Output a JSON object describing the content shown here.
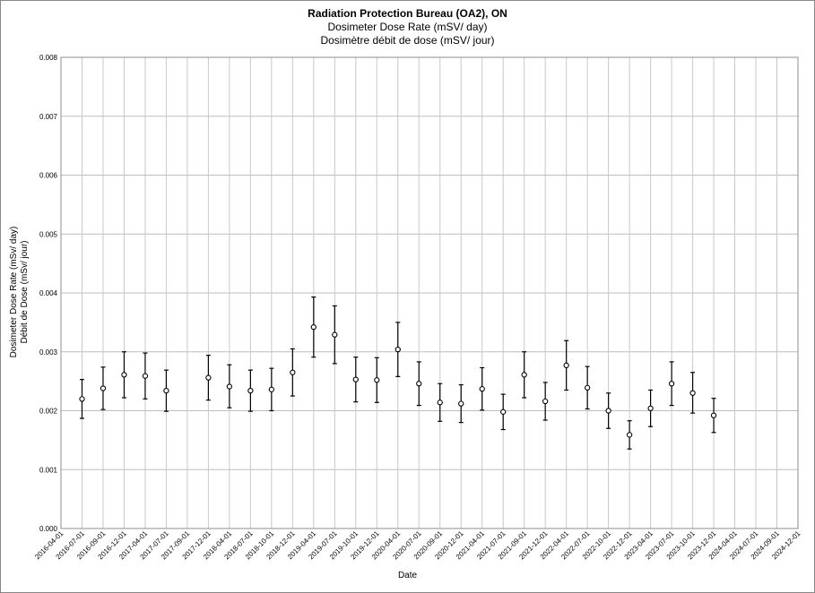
{
  "chart_data": {
    "type": "scatter",
    "title": "Radiation Protection Bureau (OA2), ON",
    "subtitle_en": "Dosimeter Dose Rate (mSV/ day)",
    "subtitle_fr": "Dosimètre débit de dose (mSV/ jour)",
    "ylabel_en": "Dosimeter Dose Rate (mSv/ day)",
    "ylabel_fr": "Débit de Dose (mSv/ jour)",
    "xlabel": "Date",
    "ylim": [
      0,
      0.008
    ],
    "y_ticks": [
      "0.000",
      "0.001",
      "0.002",
      "0.003",
      "0.004",
      "0.005",
      "0.006",
      "0.007",
      "0.008"
    ],
    "x_ticks": [
      "2016-04-01",
      "2016-07-01",
      "2016-09-01",
      "2016-12-01",
      "2017-04-01",
      "2017-07-01",
      "2017-09-01",
      "2017-12-01",
      "2018-04-01",
      "2018-07-01",
      "2018-10-01",
      "2018-12-01",
      "2019-04-01",
      "2019-07-01",
      "2019-10-01",
      "2019-12-01",
      "2020-04-01",
      "2020-07-01",
      "2020-09-01",
      "2020-12-01",
      "2021-04-01",
      "2021-07-01",
      "2021-09-01",
      "2021-12-01",
      "2022-04-01",
      "2022-07-01",
      "2022-10-01",
      "2022-12-01",
      "2023-04-01",
      "2023-07-01",
      "2023-10-01",
      "2023-12-01",
      "2024-04-01",
      "2024-07-01",
      "2024-09-01",
      "2024-12-01"
    ],
    "grid": true,
    "marker": "open-circle",
    "points": [
      {
        "x": "2016-07-01",
        "y": 0.0022,
        "low": 0.00187,
        "high": 0.00253
      },
      {
        "x": "2016-09-01",
        "y": 0.00238,
        "low": 0.00202,
        "high": 0.00274
      },
      {
        "x": "2016-12-01",
        "y": 0.00261,
        "low": 0.00222,
        "high": 0.003
      },
      {
        "x": "2017-04-01",
        "y": 0.00259,
        "low": 0.0022,
        "high": 0.00298
      },
      {
        "x": "2017-07-01",
        "y": 0.00234,
        "low": 0.00199,
        "high": 0.00269
      },
      {
        "x": "2017-12-01",
        "y": 0.00256,
        "low": 0.00218,
        "high": 0.00294
      },
      {
        "x": "2018-04-01",
        "y": 0.00241,
        "low": 0.00205,
        "high": 0.00278
      },
      {
        "x": "2018-07-01",
        "y": 0.00234,
        "low": 0.00199,
        "high": 0.00269
      },
      {
        "x": "2018-10-01",
        "y": 0.00236,
        "low": 0.002,
        "high": 0.00272
      },
      {
        "x": "2018-12-01",
        "y": 0.00265,
        "low": 0.00225,
        "high": 0.00305
      },
      {
        "x": "2019-04-01",
        "y": 0.00342,
        "low": 0.00291,
        "high": 0.00393
      },
      {
        "x": "2019-07-01",
        "y": 0.00329,
        "low": 0.0028,
        "high": 0.00378
      },
      {
        "x": "2019-10-01",
        "y": 0.00253,
        "low": 0.00215,
        "high": 0.00291
      },
      {
        "x": "2019-12-01",
        "y": 0.00252,
        "low": 0.00214,
        "high": 0.0029
      },
      {
        "x": "2020-04-01",
        "y": 0.00304,
        "low": 0.00258,
        "high": 0.0035
      },
      {
        "x": "2020-07-01",
        "y": 0.00246,
        "low": 0.00209,
        "high": 0.00283
      },
      {
        "x": "2020-09-01",
        "y": 0.00214,
        "low": 0.00182,
        "high": 0.00246
      },
      {
        "x": "2020-12-01",
        "y": 0.00212,
        "low": 0.0018,
        "high": 0.00244
      },
      {
        "x": "2021-04-01",
        "y": 0.00237,
        "low": 0.00201,
        "high": 0.00273
      },
      {
        "x": "2021-07-01",
        "y": 0.00198,
        "low": 0.00168,
        "high": 0.00228
      },
      {
        "x": "2021-09-01",
        "y": 0.00261,
        "low": 0.00222,
        "high": 0.003
      },
      {
        "x": "2021-12-01",
        "y": 0.00216,
        "low": 0.00184,
        "high": 0.00248
      },
      {
        "x": "2022-04-01",
        "y": 0.00277,
        "low": 0.00235,
        "high": 0.00319
      },
      {
        "x": "2022-07-01",
        "y": 0.00239,
        "low": 0.00203,
        "high": 0.00275
      },
      {
        "x": "2022-10-01",
        "y": 0.002,
        "low": 0.0017,
        "high": 0.0023
      },
      {
        "x": "2022-12-01",
        "y": 0.00159,
        "low": 0.00135,
        "high": 0.00183
      },
      {
        "x": "2023-04-01",
        "y": 0.00204,
        "low": 0.00173,
        "high": 0.00235
      },
      {
        "x": "2023-07-01",
        "y": 0.00246,
        "low": 0.00209,
        "high": 0.00283
      },
      {
        "x": "2023-10-01",
        "y": 0.0023,
        "low": 0.00196,
        "high": 0.00265
      },
      {
        "x": "2023-12-01",
        "y": 0.00192,
        "low": 0.00163,
        "high": 0.00221
      }
    ]
  }
}
